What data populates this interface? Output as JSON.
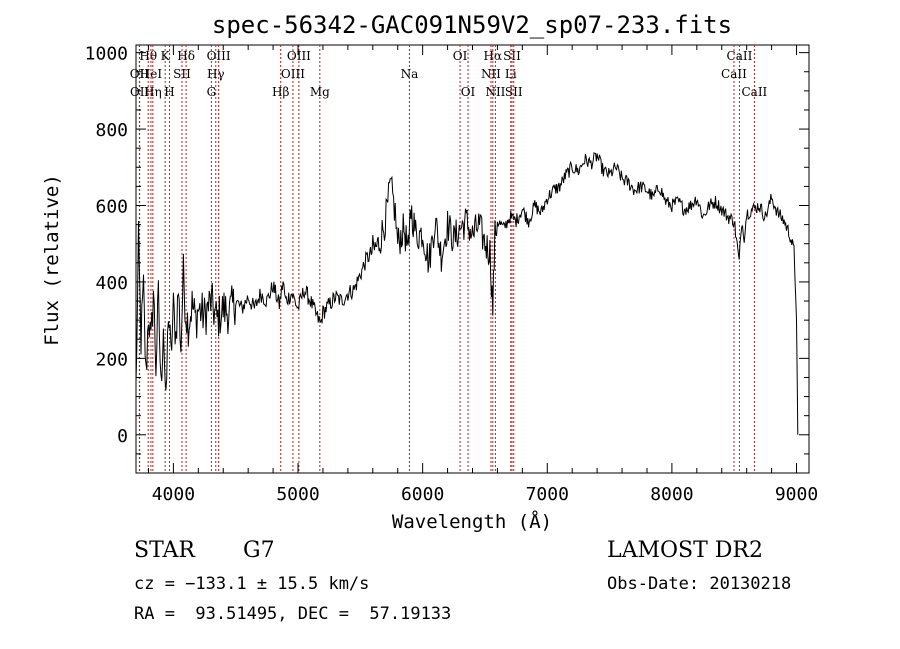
{
  "chart_data": {
    "type": "line",
    "title": "spec-56342-GAC091N59V2_sp07-233.fits",
    "xlabel": "Wavelength (Å)",
    "ylabel": "Flux (relative)",
    "xlim": [
      3700,
      9100
    ],
    "ylim": [
      -100,
      1020
    ],
    "xticks": [
      4000,
      5000,
      6000,
      7000,
      8000,
      9000
    ],
    "yticks": [
      0,
      200,
      400,
      600,
      800,
      1000
    ],
    "grid": false,
    "series": [
      {
        "x": [
          3700,
          3720,
          3740,
          3760,
          3780,
          3800,
          3820,
          3840,
          3860,
          3880,
          3900,
          3920,
          3940,
          3960,
          3980,
          4000,
          4020,
          4040,
          4060,
          4080,
          4100,
          4120,
          4150,
          4180,
          4200,
          4250,
          4300,
          4350,
          4400,
          4450,
          4500,
          4550,
          4600,
          4650,
          4700,
          4750,
          4800,
          4850,
          4880,
          4900,
          4950,
          5000,
          5050,
          5100,
          5150,
          5180,
          5200,
          5250,
          5300,
          5350,
          5400,
          5450,
          5500,
          5550,
          5600,
          5650,
          5700,
          5720,
          5740,
          5760,
          5780,
          5800,
          5850,
          5890,
          5900,
          5950,
          6000,
          6050,
          6100,
          6150,
          6200,
          6250,
          6300,
          6350,
          6400,
          6450,
          6500,
          6540,
          6563,
          6580,
          6600,
          6650,
          6700,
          6750,
          6800,
          6850,
          6900,
          6950,
          7000,
          7050,
          7100,
          7150,
          7200,
          7250,
          7300,
          7350,
          7400,
          7450,
          7500,
          7550,
          7600,
          7650,
          7700,
          7750,
          7800,
          7850,
          7900,
          7950,
          8000,
          8050,
          8100,
          8150,
          8200,
          8250,
          8300,
          8350,
          8400,
          8450,
          8500,
          8540,
          8560,
          8580,
          8600,
          8650,
          8700,
          8750,
          8800,
          8850,
          8900,
          8950,
          8980,
          9000,
          9010
        ],
        "y": [
          120,
          500,
          250,
          380,
          150,
          320,
          230,
          380,
          180,
          360,
          120,
          300,
          60,
          330,
          200,
          330,
          260,
          380,
          230,
          420,
          320,
          290,
          340,
          300,
          330,
          310,
          350,
          300,
          330,
          320,
          350,
          330,
          360,
          330,
          370,
          350,
          390,
          340,
          400,
          350,
          370,
          330,
          380,
          350,
          310,
          290,
          320,
          340,
          360,
          350,
          370,
          380,
          420,
          460,
          480,
          500,
          560,
          600,
          650,
          620,
          580,
          500,
          540,
          470,
          600,
          520,
          530,
          450,
          560,
          470,
          550,
          510,
          540,
          560,
          520,
          550,
          500,
          480,
          330,
          520,
          560,
          540,
          570,
          560,
          590,
          560,
          600,
          580,
          620,
          640,
          650,
          680,
          700,
          690,
          720,
          710,
          730,
          690,
          680,
          700,
          670,
          660,
          640,
          650,
          640,
          620,
          650,
          610,
          600,
          610,
          590,
          600,
          620,
          570,
          600,
          610,
          590,
          570,
          560,
          450,
          560,
          520,
          580,
          590,
          600,
          570,
          620,
          580,
          560,
          520,
          480,
          300,
          0
        ]
      }
    ],
    "lines": [
      {
        "label": "Hθ",
        "x": 3798,
        "row": 0
      },
      {
        "label": "OII",
        "x": 3727,
        "row": 1
      },
      {
        "label": "OII",
        "x": 3729,
        "row": 2
      },
      {
        "label": "HeI",
        "x": 3820,
        "row": 1
      },
      {
        "label": "Hη",
        "x": 3835,
        "row": 2
      },
      {
        "label": "K",
        "x": 3934,
        "row": 0
      },
      {
        "label": "H",
        "x": 3969,
        "row": 2
      },
      {
        "label": "SII",
        "x": 4069,
        "row": 1
      },
      {
        "label": "Hδ",
        "x": 4102,
        "row": 0
      },
      {
        "label": "OIII",
        "x": 4363,
        "row": 0
      },
      {
        "label": "Hγ",
        "x": 4340,
        "row": 1
      },
      {
        "label": "G",
        "x": 4305,
        "row": 2
      },
      {
        "label": "Hβ",
        "x": 4861,
        "row": 2
      },
      {
        "label": "OIII",
        "x": 5007,
        "row": 0
      },
      {
        "label": "OIII",
        "x": 4959,
        "row": 1
      },
      {
        "label": "Mg",
        "x": 5175,
        "row": 2
      },
      {
        "label": "Na",
        "x": 5894,
        "row": 1
      },
      {
        "label": "OI",
        "x": 6300,
        "row": 0
      },
      {
        "label": "OI",
        "x": 6364,
        "row": 2
      },
      {
        "label": "Hα",
        "x": 6563,
        "row": 0
      },
      {
        "label": "NII",
        "x": 6548,
        "row": 1
      },
      {
        "label": "NII",
        "x": 6584,
        "row": 2
      },
      {
        "label": "SII",
        "x": 6717,
        "row": 0
      },
      {
        "label": "Li",
        "x": 6707,
        "row": 1
      },
      {
        "label": "SII",
        "x": 6731,
        "row": 2
      },
      {
        "label": "CaII",
        "x": 8542,
        "row": 0
      },
      {
        "label": "CaII",
        "x": 8498,
        "row": 1
      },
      {
        "label": "CaII",
        "x": 8662,
        "row": 2
      }
    ]
  },
  "info": {
    "class": "STAR",
    "subclass": "G7",
    "survey": "LAMOST DR2",
    "cz": "cz = −133.1 ± 15.5 km/s",
    "obs_date": "Obs-Date: 20130218",
    "radec": "RA =  93.51495, DEC =  57.19133"
  }
}
